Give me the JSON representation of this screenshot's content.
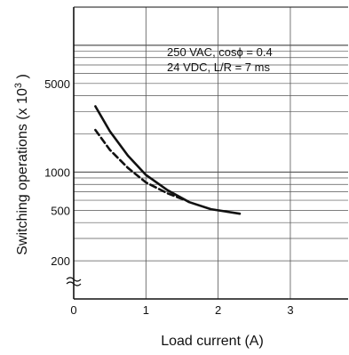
{
  "chart_data": {
    "type": "line",
    "xlabel": "Load current (A)",
    "ylabel": "Switching operations (x 10",
    "ylabel_exponent": "3",
    "ylabel_suffix": " )",
    "xlim": [
      0,
      3.8
    ],
    "ylim_log": [
      100,
      20000
    ],
    "y_scale": "log",
    "grid": true,
    "x_ticks": [
      {
        "v": 0,
        "label": "0"
      },
      {
        "v": 1,
        "label": "1"
      },
      {
        "v": 2,
        "label": "2"
      },
      {
        "v": 3,
        "label": "3"
      }
    ],
    "y_ticks": [
      {
        "v": 5000,
        "label": "5000"
      },
      {
        "v": 1000,
        "label": "1000"
      },
      {
        "v": 500,
        "label": "500"
      },
      {
        "v": 200,
        "label": "200"
      }
    ],
    "annotations": [
      "250 VAC, cosϕ = 0.4",
      "24 VDC, L/R = 7 ms"
    ],
    "series": [
      {
        "style": "solid",
        "x": [
          0.3,
          0.5,
          0.75,
          1.0,
          1.3,
          1.6,
          1.9,
          2.3
        ],
        "y": [
          3300,
          2100,
          1350,
          950,
          720,
          580,
          510,
          470
        ]
      },
      {
        "style": "dashed",
        "x": [
          0.3,
          0.5,
          0.75,
          1.0,
          1.3,
          1.55
        ],
        "y": [
          2150,
          1500,
          1080,
          830,
          680,
          600
        ]
      }
    ]
  }
}
